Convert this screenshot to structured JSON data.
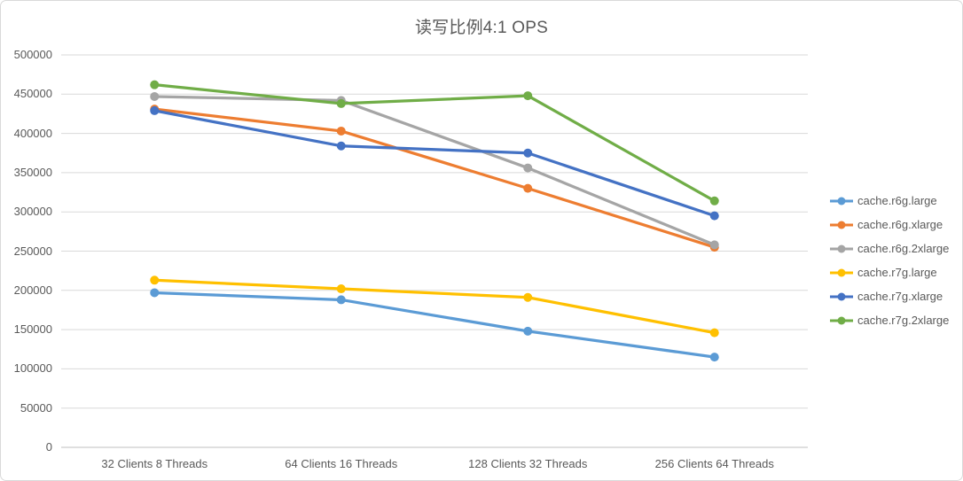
{
  "chart_data": {
    "type": "line",
    "title": "读写比例4:1 OPS",
    "categories": [
      "32 Clients 8 Threads",
      "64 Clients 16 Threads",
      "128 Clients 32 Threads",
      "256 Clients 64 Threads"
    ],
    "series": [
      {
        "name": "cache.r6g.large",
        "color": "#5B9BD5",
        "values": [
          197000,
          188000,
          148000,
          115000
        ]
      },
      {
        "name": "cache.r6g.xlarge",
        "color": "#ED7D31",
        "values": [
          431000,
          403000,
          330000,
          255000
        ]
      },
      {
        "name": "cache.r6g.2xlarge",
        "color": "#A5A5A5",
        "values": [
          447000,
          442000,
          356000,
          258000
        ]
      },
      {
        "name": "cache.r7g.large",
        "color": "#FFC000",
        "values": [
          213000,
          202000,
          191000,
          146000
        ]
      },
      {
        "name": "cache.r7g.xlarge",
        "color": "#4472C4",
        "values": [
          429000,
          384000,
          375000,
          295000
        ]
      },
      {
        "name": "cache.r7g.2xlarge",
        "color": "#70AD47",
        "values": [
          462000,
          438000,
          448000,
          314000
        ]
      }
    ],
    "ylim": [
      0,
      500000
    ],
    "y_tick_step": 50000,
    "y_tick_labels": [
      "0",
      "50000",
      "100000",
      "150000",
      "200000",
      "250000",
      "300000",
      "350000",
      "400000",
      "450000",
      "500000"
    ],
    "legend_position": "right",
    "grid": true,
    "gridline_color": "#D9D9D9",
    "axis_line_color": "#BFBFBF",
    "text_color": "#595959",
    "card_border_color": "#D9D9D9"
  }
}
